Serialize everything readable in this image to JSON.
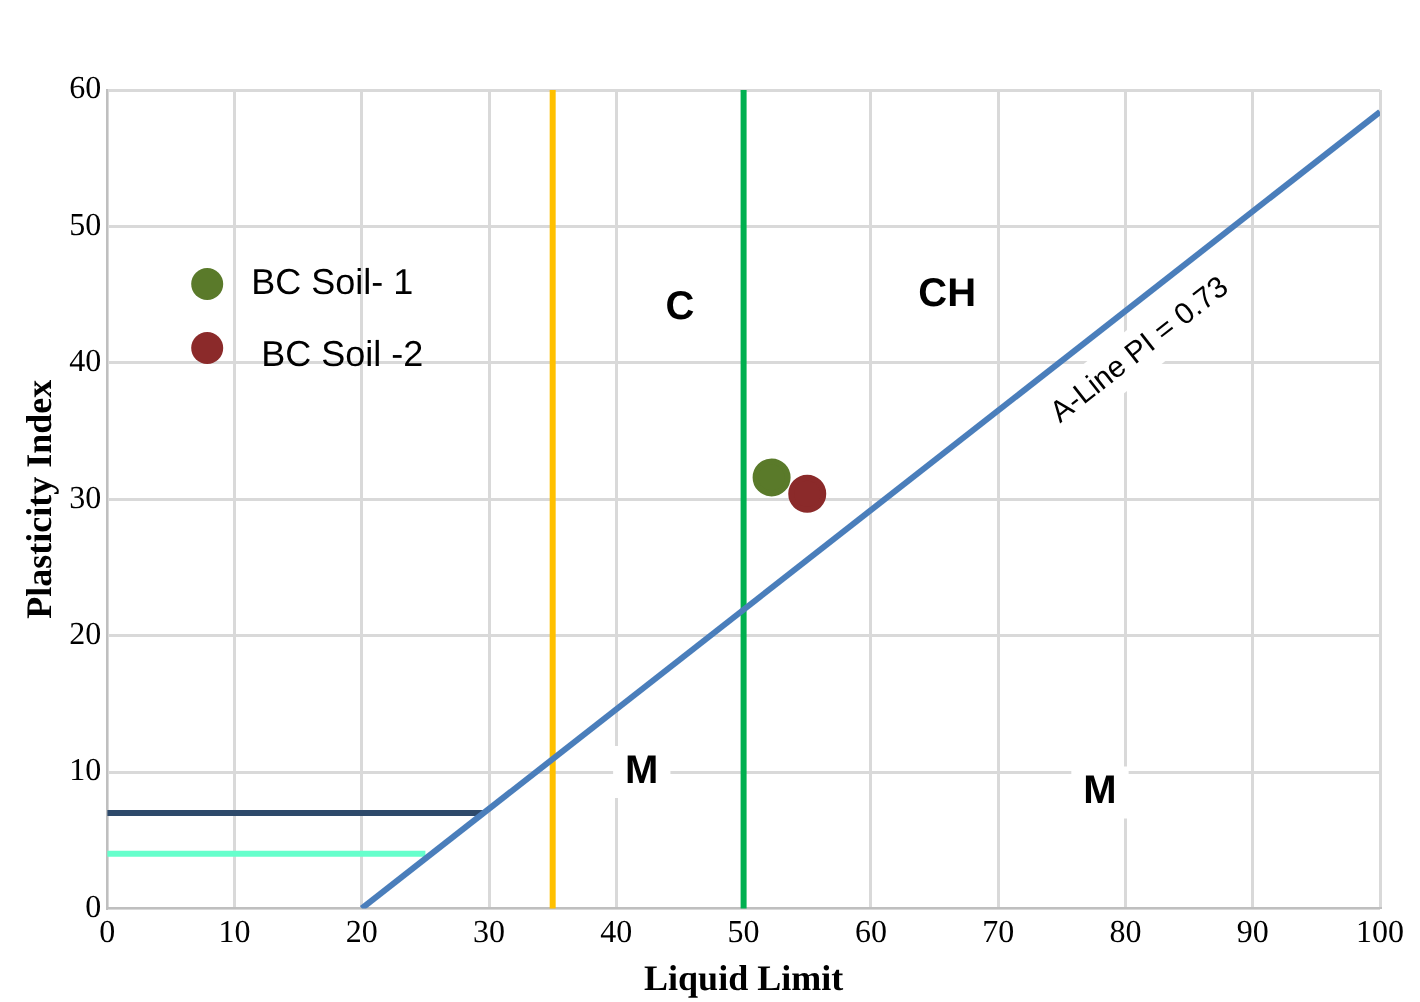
{
  "chart_data": {
    "type": "scatter",
    "xlabel": "Liquid Limit",
    "ylabel": "Plasticity Index",
    "xlim": [
      0,
      100
    ],
    "xticks": [
      0,
      10,
      20,
      30,
      40,
      50,
      60,
      70,
      80,
      90,
      100
    ],
    "ylim": [
      0,
      60
    ],
    "yticks": [
      0,
      10,
      20,
      30,
      40,
      50,
      60
    ],
    "grid": true,
    "legend": "top left",
    "marker": "circle",
    "series": [
      {
        "type": "line",
        "name": "A-Line PI = 0.73",
        "color": "#4a7ebb",
        "x": [
          20,
          100
        ],
        "values": [
          0,
          58.4
        ],
        "marker": "none"
      },
      {
        "type": "line",
        "color": "#2e4a6b",
        "x": [
          0,
          29.6
        ],
        "values": [
          7,
          7
        ],
        "marker": "none"
      },
      {
        "type": "line",
        "color": "#66ffcc",
        "x": [
          0,
          25
        ],
        "values": [
          4,
          4
        ],
        "marker": "none"
      },
      {
        "name": "BC Soil- 1",
        "color": "#5a7a2a",
        "x": [
          52.2
        ],
        "values": [
          31.6
        ]
      },
      {
        "name": "BC Soil -2",
        "color": "#8b2a2a",
        "x": [
          55
        ],
        "values": [
          30.4
        ]
      }
    ],
    "ref_lines": [
      {
        "axis": "x",
        "value": 35,
        "color": "#ffc000"
      },
      {
        "axis": "x",
        "value": 50,
        "color": "#00b050"
      }
    ],
    "annotations": [
      {
        "text": "C",
        "x": 45,
        "y": 44
      },
      {
        "text": "CH",
        "x": 66,
        "y": 45
      },
      {
        "text": "M",
        "x": 42,
        "y": 10
      },
      {
        "text": "M",
        "x": 78,
        "y": 8.5
      }
    ]
  }
}
